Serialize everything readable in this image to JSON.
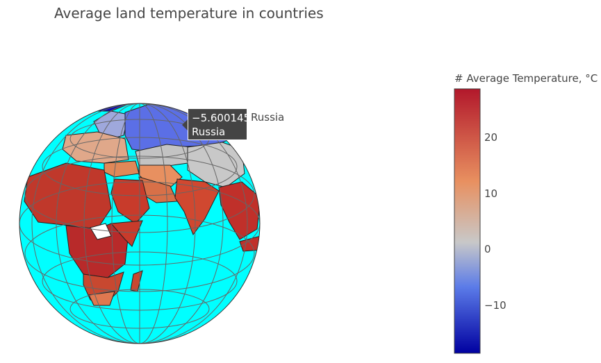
{
  "title": "Average land temperature in countries",
  "tooltip": {
    "value": "−5.600145",
    "country": "Russia",
    "trace_name": "Russia"
  },
  "colorbar": {
    "title": "# Average Temperature, °C",
    "range": [
      -19,
      29
    ],
    "ticks": [
      {
        "label": "20",
        "value": 20
      },
      {
        "label": "10",
        "value": 10
      },
      {
        "label": "0",
        "value": 0
      },
      {
        "label": "−10",
        "value": -10
      }
    ],
    "colorscale": [
      "#0000a0",
      "#5b7be8",
      "#c8c8c8",
      "#e89060",
      "#b2182b"
    ]
  },
  "map": {
    "projection": "orthographic",
    "ocean_color": "#00ffff",
    "gridlines": true,
    "highlighted_country": "Russia"
  }
}
